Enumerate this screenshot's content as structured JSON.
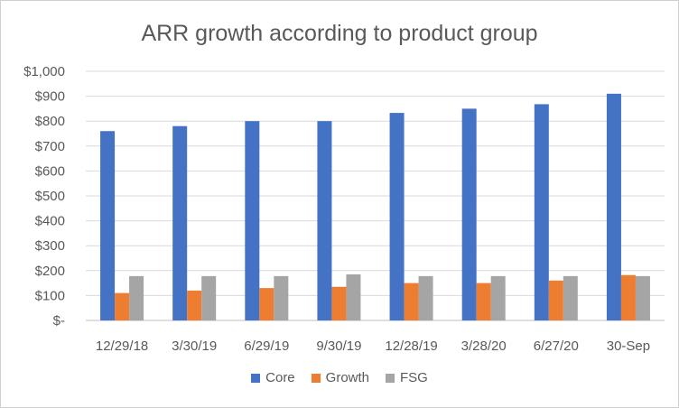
{
  "chart_data": {
    "type": "bar",
    "title": "ARR growth according to product group",
    "categories": [
      "12/29/18",
      "3/30/19",
      "6/29/19",
      "9/30/19",
      "12/28/19",
      "3/28/20",
      "6/27/20",
      "30-Sep"
    ],
    "series": [
      {
        "name": "Core",
        "color": "#4472C4",
        "values": [
          760,
          780,
          800,
          800,
          833,
          850,
          868,
          910
        ]
      },
      {
        "name": "Growth",
        "color": "#ED7D31",
        "values": [
          110,
          120,
          130,
          135,
          150,
          150,
          160,
          182
        ]
      },
      {
        "name": "FSG",
        "color": "#A5A5A5",
        "values": [
          178,
          178,
          178,
          185,
          178,
          178,
          178,
          178
        ]
      }
    ],
    "ylim": [
      0,
      1000
    ],
    "yticks": [
      0,
      100,
      200,
      300,
      400,
      500,
      600,
      700,
      800,
      900,
      1000
    ],
    "ytick_labels": [
      "$-",
      "$100",
      "$200",
      "$300",
      "$400",
      "$500",
      "$600",
      "$700",
      "$800",
      "$900",
      "$1,000"
    ],
    "grid": true,
    "legend_position": "bottom"
  }
}
